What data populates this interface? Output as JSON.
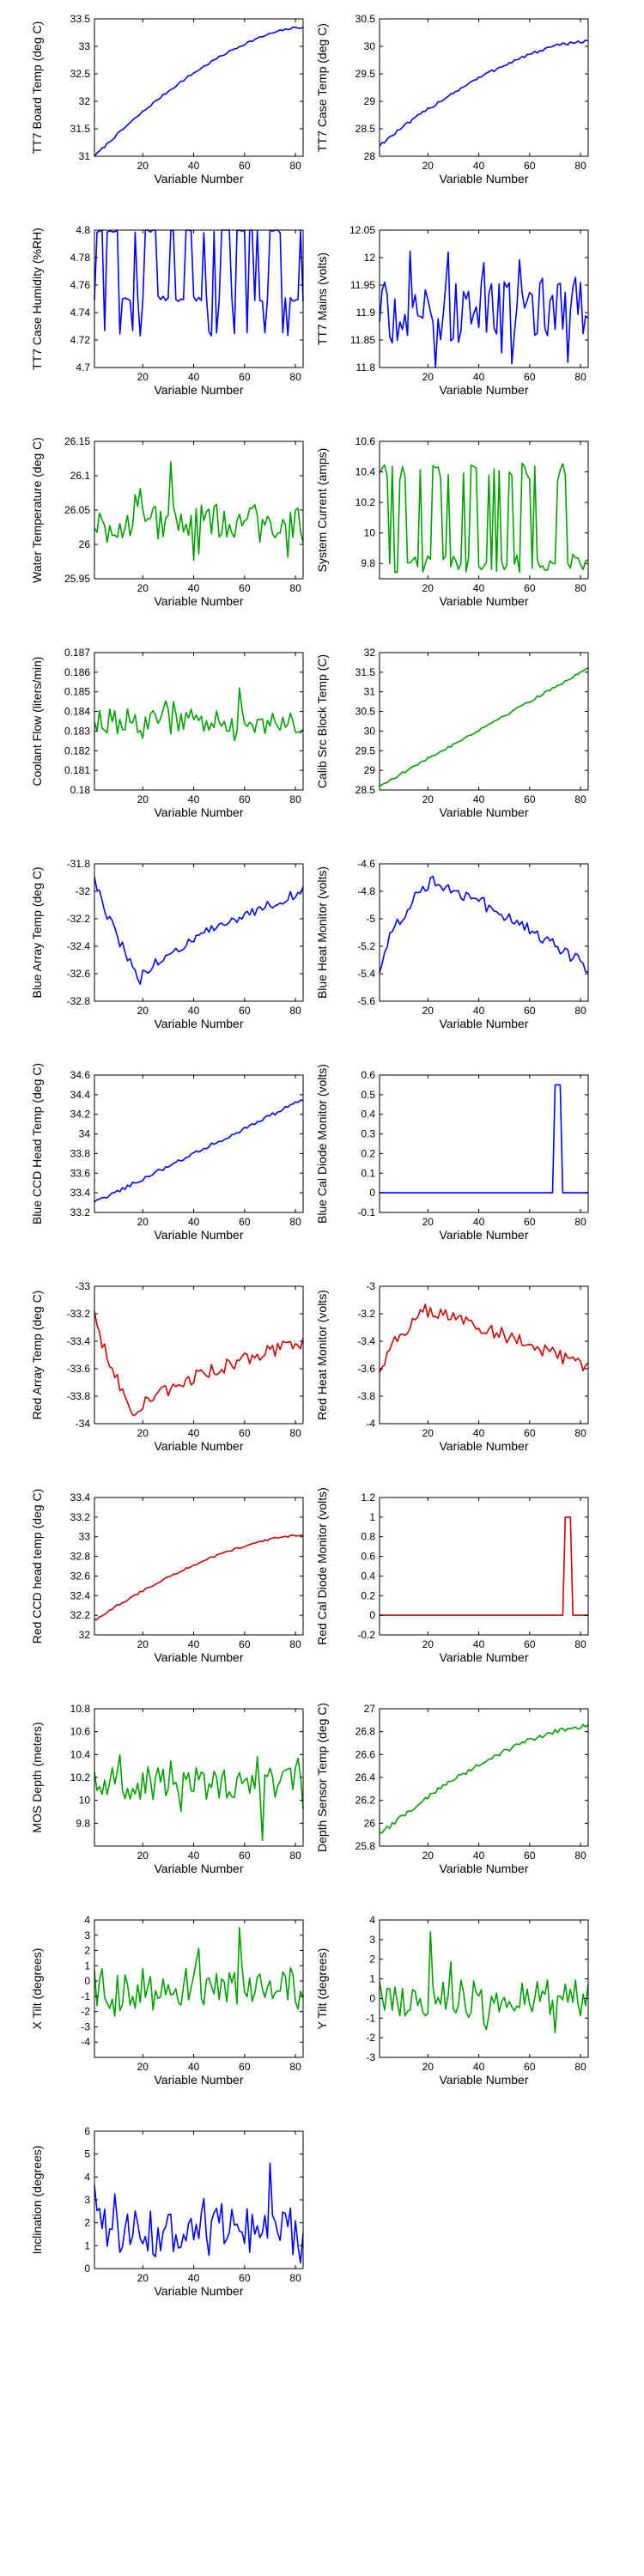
{
  "colors": {
    "blue": "#0000ff",
    "green": "#00a000",
    "red": "#cc0000",
    "axis": "#000000"
  },
  "chart_data": [
    {
      "type": "line",
      "series": [
        {
          "color": "blue",
          "shape": "rise_decel",
          "start": 31.0,
          "end": 33.35,
          "noise": 0.02
        }
      ],
      "x": [
        1,
        83
      ],
      "xlim": [
        1,
        83
      ],
      "xticks": [
        20,
        40,
        60,
        80
      ],
      "xlabel": "Variable Number",
      "ylim": [
        31,
        33.5
      ],
      "yticks": [
        31,
        31.5,
        32,
        32.5,
        33,
        33.5
      ],
      "ylabel": "TT7 Board Temp (deg C)"
    },
    {
      "type": "line",
      "series": [
        {
          "color": "blue",
          "shape": "rise_decel",
          "start": 28.2,
          "end": 30.1,
          "noise": 0.03
        }
      ],
      "x": [
        1,
        83
      ],
      "xlim": [
        1,
        83
      ],
      "xticks": [
        20,
        40,
        60,
        80
      ],
      "xlabel": "Variable Number",
      "ylim": [
        28,
        30.5
      ],
      "yticks": [
        28,
        28.5,
        29,
        29.5,
        30,
        30.5
      ],
      "ylabel": "TT7 Case Temp (deg C)"
    },
    {
      "type": "line",
      "series": [
        {
          "color": "blue",
          "shape": "binary",
          "low": 4.75,
          "high": 4.8,
          "low2": 4.725,
          "noise": 0.002
        }
      ],
      "x": [
        1,
        83
      ],
      "xlim": [
        1,
        83
      ],
      "xticks": [
        20,
        40,
        60,
        80
      ],
      "xlabel": "Variable Number",
      "ylim": [
        4.7,
        4.8
      ],
      "yticks": [
        4.7,
        4.72,
        4.74,
        4.76,
        4.78,
        4.8
      ],
      "ylabel": "TT7 Case Humidity (%RH)"
    },
    {
      "type": "line",
      "series": [
        {
          "color": "blue",
          "shape": "noisy",
          "center": 11.9,
          "amp": 0.07,
          "spike_at": 27,
          "spike_val": 12.01
        }
      ],
      "x": [
        1,
        83
      ],
      "xlim": [
        1,
        83
      ],
      "xticks": [
        20,
        40,
        60,
        80
      ],
      "xlabel": "Variable Number",
      "ylim": [
        11.8,
        12.05
      ],
      "yticks": [
        11.8,
        11.85,
        11.9,
        11.95,
        12,
        12.05
      ],
      "ylabel": "TT7 Mains  (volts)"
    },
    {
      "type": "line",
      "series": [
        {
          "color": "green",
          "shape": "noisy",
          "center": 26.03,
          "amp": 0.035,
          "spike_at": 30,
          "spike_val": 26.12
        }
      ],
      "x": [
        1,
        83
      ],
      "xlim": [
        1,
        83
      ],
      "xticks": [
        20,
        40,
        60,
        80
      ],
      "xlabel": "Variable Number",
      "ylim": [
        25.95,
        26.15
      ],
      "yticks": [
        25.95,
        26,
        26.05,
        26.1,
        26.15
      ],
      "ylabel": "Water Temperature (deg C)"
    },
    {
      "type": "line",
      "series": [
        {
          "color": "green",
          "shape": "binary",
          "low": 9.8,
          "high": 10.4,
          "low2": 9.78,
          "noise": 0.06
        }
      ],
      "x": [
        1,
        83
      ],
      "xlim": [
        1,
        83
      ],
      "xticks": [
        20,
        40,
        60,
        80
      ],
      "xlabel": "Variable Number",
      "ylim": [
        9.7,
        10.6
      ],
      "yticks": [
        9.8,
        10,
        10.2,
        10.4,
        10.6
      ],
      "ylabel": "System Current (amps)"
    },
    {
      "type": "line",
      "series": [
        {
          "color": "green",
          "shape": "noisy",
          "center": 0.1835,
          "amp": 0.0008,
          "spike_at": 57,
          "spike_val": 0.1852
        }
      ],
      "x": [
        1,
        83
      ],
      "xlim": [
        1,
        83
      ],
      "xticks": [
        20,
        40,
        60,
        80
      ],
      "xlabel": "Variable Number",
      "ylim": [
        0.18,
        0.187
      ],
      "yticks": [
        0.18,
        0.181,
        0.182,
        0.183,
        0.184,
        0.185,
        0.186,
        0.187
      ],
      "ylabel": "Coolant Flow (liters/min)"
    },
    {
      "type": "line",
      "series": [
        {
          "color": "green",
          "shape": "rise_lin",
          "start": 28.6,
          "end": 31.6,
          "noise": 0.03
        }
      ],
      "x": [
        1,
        83
      ],
      "xlim": [
        1,
        83
      ],
      "xticks": [
        20,
        40,
        60,
        80
      ],
      "xlabel": "Variable Number",
      "ylim": [
        28.5,
        32
      ],
      "yticks": [
        28.5,
        29,
        29.5,
        30,
        30.5,
        31,
        31.5,
        32
      ],
      "ylabel": "Calib Src Block Temp (C)"
    },
    {
      "type": "line",
      "series": [
        {
          "color": "blue",
          "shape": "dip_rise",
          "start": -31.9,
          "min": -32.65,
          "min_at": 18,
          "end": -32.0,
          "noise": 0.04
        }
      ],
      "x": [
        1,
        83
      ],
      "xlim": [
        1,
        83
      ],
      "xticks": [
        20,
        40,
        60,
        80
      ],
      "xlabel": "Variable Number",
      "ylim": [
        -32.8,
        -31.8
      ],
      "yticks": [
        -32.8,
        -32.6,
        -32.4,
        -32.2,
        -32,
        -31.8
      ],
      "ylabel": "Blue Array Temp (deg C)"
    },
    {
      "type": "line",
      "series": [
        {
          "color": "blue",
          "shape": "peak_fall",
          "start": -5.4,
          "peak": -4.72,
          "peak_at": 20,
          "end": -5.35,
          "noise": 0.05
        }
      ],
      "x": [
        1,
        83
      ],
      "xlim": [
        1,
        83
      ],
      "xticks": [
        20,
        40,
        60,
        80
      ],
      "xlabel": "Variable Number",
      "ylim": [
        -5.6,
        -4.6
      ],
      "yticks": [
        -5.6,
        -5.4,
        -5.2,
        -5,
        -4.8,
        -4.6
      ],
      "ylabel": "Blue Heat Monitor (volts)"
    },
    {
      "type": "line",
      "series": [
        {
          "color": "blue",
          "shape": "rise_lin",
          "start": 33.3,
          "end": 34.35,
          "noise": 0.02
        }
      ],
      "x": [
        1,
        83
      ],
      "xlim": [
        1,
        83
      ],
      "xticks": [
        20,
        40,
        60,
        80
      ],
      "xlabel": "Variable Number",
      "ylim": [
        33.2,
        34.6
      ],
      "yticks": [
        33.2,
        33.4,
        33.6,
        33.8,
        34,
        34.2,
        34.4,
        34.6
      ],
      "ylabel": "Blue CCD Head Temp (deg C)"
    },
    {
      "type": "line",
      "series": [
        {
          "color": "blue",
          "shape": "pulse",
          "base": 0.0,
          "high": 0.55,
          "from": 70,
          "to": 72
        }
      ],
      "x": [
        1,
        83
      ],
      "xlim": [
        1,
        83
      ],
      "xticks": [
        20,
        40,
        60,
        80
      ],
      "xlabel": "Variable Number",
      "ylim": [
        -0.1,
        0.6
      ],
      "yticks": [
        -0.1,
        0,
        0.1,
        0.2,
        0.3,
        0.4,
        0.5,
        0.6
      ],
      "ylabel": "Blue Cal Diode Monitor (volts)"
    },
    {
      "type": "line",
      "series": [
        {
          "color": "red",
          "shape": "dip_rise",
          "start": -33.2,
          "min": -33.92,
          "min_at": 15,
          "end": -33.4,
          "noise": 0.05
        }
      ],
      "x": [
        1,
        83
      ],
      "xlim": [
        1,
        83
      ],
      "xticks": [
        20,
        40,
        60,
        80
      ],
      "xlabel": "Variable Number",
      "ylim": [
        -34,
        -33
      ],
      "yticks": [
        -34,
        -33.8,
        -33.6,
        -33.4,
        -33.2,
        -33
      ],
      "ylabel": "Red Array Temp (deg C)"
    },
    {
      "type": "line",
      "series": [
        {
          "color": "red",
          "shape": "peak_fall",
          "start": -3.65,
          "peak": -3.18,
          "peak_at": 18,
          "end": -3.6,
          "noise": 0.05
        }
      ],
      "x": [
        1,
        83
      ],
      "xlim": [
        1,
        83
      ],
      "xticks": [
        20,
        40,
        60,
        80
      ],
      "xlabel": "Variable Number",
      "ylim": [
        -4,
        -3
      ],
      "yticks": [
        -4,
        -3.8,
        -3.6,
        -3.4,
        -3.2,
        -3
      ],
      "ylabel": "Red Heat Monitor (volts)"
    },
    {
      "type": "line",
      "series": [
        {
          "color": "red",
          "shape": "rise_decel",
          "start": 32.15,
          "end": 33.02,
          "noise": 0.01
        }
      ],
      "x": [
        1,
        83
      ],
      "xlim": [
        1,
        83
      ],
      "xticks": [
        20,
        40,
        60,
        80
      ],
      "xlabel": "Variable Number",
      "ylim": [
        32,
        33.4
      ],
      "yticks": [
        32,
        32.2,
        32.4,
        32.6,
        32.8,
        33,
        33.2,
        33.4
      ],
      "ylabel": "Red CCD head temp (deg C)"
    },
    {
      "type": "line",
      "series": [
        {
          "color": "red",
          "shape": "pulse",
          "base": 0.0,
          "high": 1.0,
          "from": 74,
          "to": 76
        }
      ],
      "x": [
        1,
        83
      ],
      "xlim": [
        1,
        83
      ],
      "xticks": [
        20,
        40,
        60,
        80
      ],
      "xlabel": "Variable Number",
      "ylim": [
        -0.2,
        1.2
      ],
      "yticks": [
        -0.2,
        0,
        0.2,
        0.4,
        0.6,
        0.8,
        1,
        1.2
      ],
      "ylabel": "Red Cal Diode Monitor (volts)"
    },
    {
      "type": "line",
      "series": [
        {
          "color": "green",
          "shape": "noisy",
          "center": 10.15,
          "amp": 0.18,
          "spike_at": 66,
          "spike_val": 9.65
        }
      ],
      "x": [
        1,
        83
      ],
      "xlim": [
        1,
        83
      ],
      "xticks": [
        20,
        40,
        60,
        80
      ],
      "xlabel": "Variable Number",
      "ylim": [
        9.6,
        10.8
      ],
      "yticks": [
        9.8,
        10,
        10.2,
        10.4,
        10.6,
        10.8
      ],
      "ylabel": "MOS Depth  (meters)"
    },
    {
      "type": "line",
      "series": [
        {
          "color": "green",
          "shape": "rise_decel",
          "start": 25.9,
          "end": 26.85,
          "noise": 0.02
        }
      ],
      "x": [
        1,
        83
      ],
      "xlim": [
        1,
        83
      ],
      "xticks": [
        20,
        40,
        60,
        80
      ],
      "xlabel": "Variable Number",
      "ylim": [
        25.8,
        27
      ],
      "yticks": [
        25.8,
        26,
        26.2,
        26.4,
        26.6,
        26.8,
        27
      ],
      "ylabel": "Depth Sensor Temp (deg C)"
    },
    {
      "type": "line",
      "series": [
        {
          "color": "green",
          "shape": "noisy",
          "center": -0.5,
          "amp": 1.8,
          "spike_at": 57,
          "spike_val": 3.5
        }
      ],
      "x": [
        1,
        83
      ],
      "xlim": [
        1,
        83
      ],
      "xticks": [
        20,
        40,
        60,
        80
      ],
      "xlabel": "Variable Number",
      "ylim": [
        -5,
        4
      ],
      "yticks": [
        -4,
        -3,
        -2,
        -1,
        0,
        1,
        2,
        3,
        4
      ],
      "ylabel": "X Tilt  (degrees)"
    },
    {
      "type": "line",
      "series": [
        {
          "color": "green",
          "shape": "noisy",
          "center": 0.0,
          "amp": 1.2,
          "spike_at": 20,
          "spike_val": 3.4
        }
      ],
      "x": [
        1,
        83
      ],
      "xlim": [
        1,
        83
      ],
      "xticks": [
        20,
        40,
        60,
        80
      ],
      "xlabel": "Variable Number",
      "ylim": [
        -3,
        4
      ],
      "yticks": [
        -3,
        -2,
        -1,
        0,
        1,
        2,
        3,
        4
      ],
      "ylabel": "Y Tilt  (degrees)"
    },
    {
      "type": "line",
      "series": [
        {
          "color": "blue",
          "shape": "noisy",
          "center": 1.6,
          "amp": 1.3,
          "spike_at": 69,
          "spike_val": 4.6
        }
      ],
      "x": [
        1,
        83
      ],
      "xlim": [
        1,
        83
      ],
      "xticks": [
        20,
        40,
        60,
        80
      ],
      "xlabel": "Variable Number",
      "ylim": [
        0,
        6
      ],
      "yticks": [
        0,
        1,
        2,
        3,
        4,
        5,
        6
      ],
      "ylabel": "Inclination  (degrees)"
    }
  ]
}
